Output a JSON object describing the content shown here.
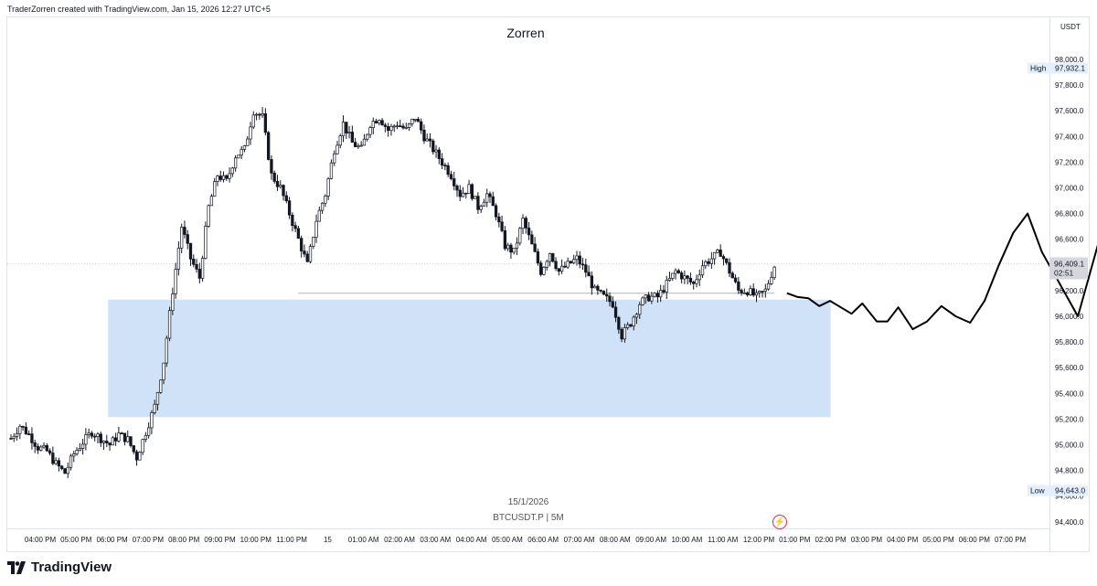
{
  "header": {
    "caption": "TraderZorren created with TradingView.com, Jan 15, 2026 12:27 UTC+5"
  },
  "title": "Zorren",
  "currency": "USDT",
  "symbol_info": {
    "date": "15/1/2026",
    "symbol": "BTCUSDT.P | 5M"
  },
  "price_tag": {
    "price": "96,409.1",
    "countdown": "02:51"
  },
  "high_marker": {
    "label": "High",
    "value": "97,932.1"
  },
  "low_marker": {
    "label": "Low",
    "value": "94,643.0"
  },
  "footer": {
    "brand": "TradingView"
  },
  "colors": {
    "zone": "#cfe2f8",
    "candle": "#131722",
    "accent": "#e91e63"
  },
  "icons": [
    "tradingview-logo-icon",
    "lightning-icon"
  ],
  "chart_data": {
    "type": "candlestick",
    "title": "Zorren",
    "symbol": "BTCUSDT.P",
    "timeframe": "5M",
    "ylim": [
      94300,
      98150
    ],
    "y_ticks": [
      "98,000.0",
      "97,800.0",
      "97,600.0",
      "97,400.0",
      "97,200.0",
      "97,000.0",
      "96,800.0",
      "96,600.0",
      "96,400.0",
      "96,200.0",
      "96,000.0",
      "95,800.0",
      "95,600.0",
      "95,400.0",
      "95,200.0",
      "95,000.0",
      "94,800.0",
      "94,600.0",
      "94,400.0"
    ],
    "x_ticks": [
      "04:00 PM",
      "05:00 PM",
      "06:00 PM",
      "07:00 PM",
      "08:00 PM",
      "09:00 PM",
      "10:00 PM",
      "11:00 PM",
      "15",
      "01:00 AM",
      "02:00 AM",
      "03:00 AM",
      "04:00 AM",
      "05:00 AM",
      "06:00 AM",
      "07:00 AM",
      "08:00 AM",
      "09:00 AM",
      "10:00 AM",
      "11:00 AM",
      "12:00 PM",
      "01:00 PM",
      "02:00 PM",
      "03:00 PM",
      "04:00 PM",
      "05:00 PM",
      "06:00 PM",
      "07:00 PM"
    ],
    "high": 97932.1,
    "low": 94643.0,
    "last_price": 96409.1,
    "path_hours": [
      0,
      0.25,
      0.5,
      0.75,
      1,
      1.25,
      1.5,
      1.75,
      2,
      2.25,
      2.5,
      2.75,
      3,
      3.25,
      3.5,
      3.75,
      4,
      4.25,
      4.5,
      4.75,
      5,
      5.25,
      5.5,
      5.75,
      6,
      6.25,
      6.5,
      6.75,
      7,
      7.25,
      7.5,
      7.75,
      8,
      8.25,
      8.5,
      8.75,
      9,
      9.25,
      9.5,
      9.75,
      10,
      10.25,
      10.5,
      10.75,
      11,
      11.25,
      11.5,
      11.75,
      12,
      12.25,
      12.5,
      12.75,
      13,
      13.25,
      13.5,
      13.75,
      14,
      14.25,
      14.5,
      14.75,
      15,
      15.25,
      15.5,
      15.75,
      16,
      16.25,
      16.5,
      16.75,
      17,
      17.25,
      17.5,
      17.75,
      18,
      18.25,
      18.5,
      18.75,
      19,
      19.25,
      19.5,
      19.75,
      20,
      20.25,
      20.5,
      20.75,
      21,
      21.27
    ],
    "path_prices": [
      95050,
      95150,
      95080,
      94980,
      94950,
      94850,
      94780,
      94930,
      95020,
      95100,
      95050,
      95000,
      95080,
      95040,
      94900,
      95100,
      95300,
      95650,
      96200,
      96700,
      96450,
      96300,
      96850,
      97100,
      97050,
      97250,
      97300,
      97600,
      97550,
      97100,
      97000,
      96800,
      96600,
      96400,
      96750,
      96950,
      97300,
      97500,
      97350,
      97300,
      97500,
      97550,
      97450,
      97500,
      97450,
      97550,
      97400,
      97300,
      97200,
      97100,
      96950,
      97000,
      96850,
      96950,
      96800,
      96550,
      96500,
      96750,
      96550,
      96350,
      96500,
      96350,
      96400,
      96450,
      96350,
      96200,
      96150,
      96100,
      95850,
      95950,
      96100,
      96150,
      96150,
      96250,
      96350,
      96300,
      96250,
      96400,
      96450,
      96500,
      96350,
      96200,
      96200,
      96150,
      96200,
      96409
    ],
    "zone": {
      "x_start_hour": 2.5,
      "x_end_hour": 22,
      "y_high": 96130,
      "y_low": 95215
    },
    "support_line": {
      "x_start_hour": 8.1,
      "x_end_hour": 21.35,
      "y": 96180
    },
    "projection": {
      "hours": [
        21.7,
        22.0,
        22.3,
        22.6,
        22.9,
        23.2,
        23.5,
        23.8,
        24.2,
        24.5,
        24.8,
        25.2,
        25.6,
        26.0,
        26.4,
        26.8,
        27.2,
        27.6,
        28.0,
        28.4,
        28.8,
        29.2,
        29.8,
        30.4,
        31.0,
        31.6
      ],
      "prices": [
        96180,
        96150,
        96140,
        96080,
        96120,
        96070,
        96020,
        96100,
        95960,
        95960,
        96070,
        95900,
        95960,
        96080,
        96000,
        95950,
        96120,
        96400,
        96650,
        96800,
        96500,
        96300,
        96000,
        96600,
        97150,
        96800
      ]
    }
  }
}
